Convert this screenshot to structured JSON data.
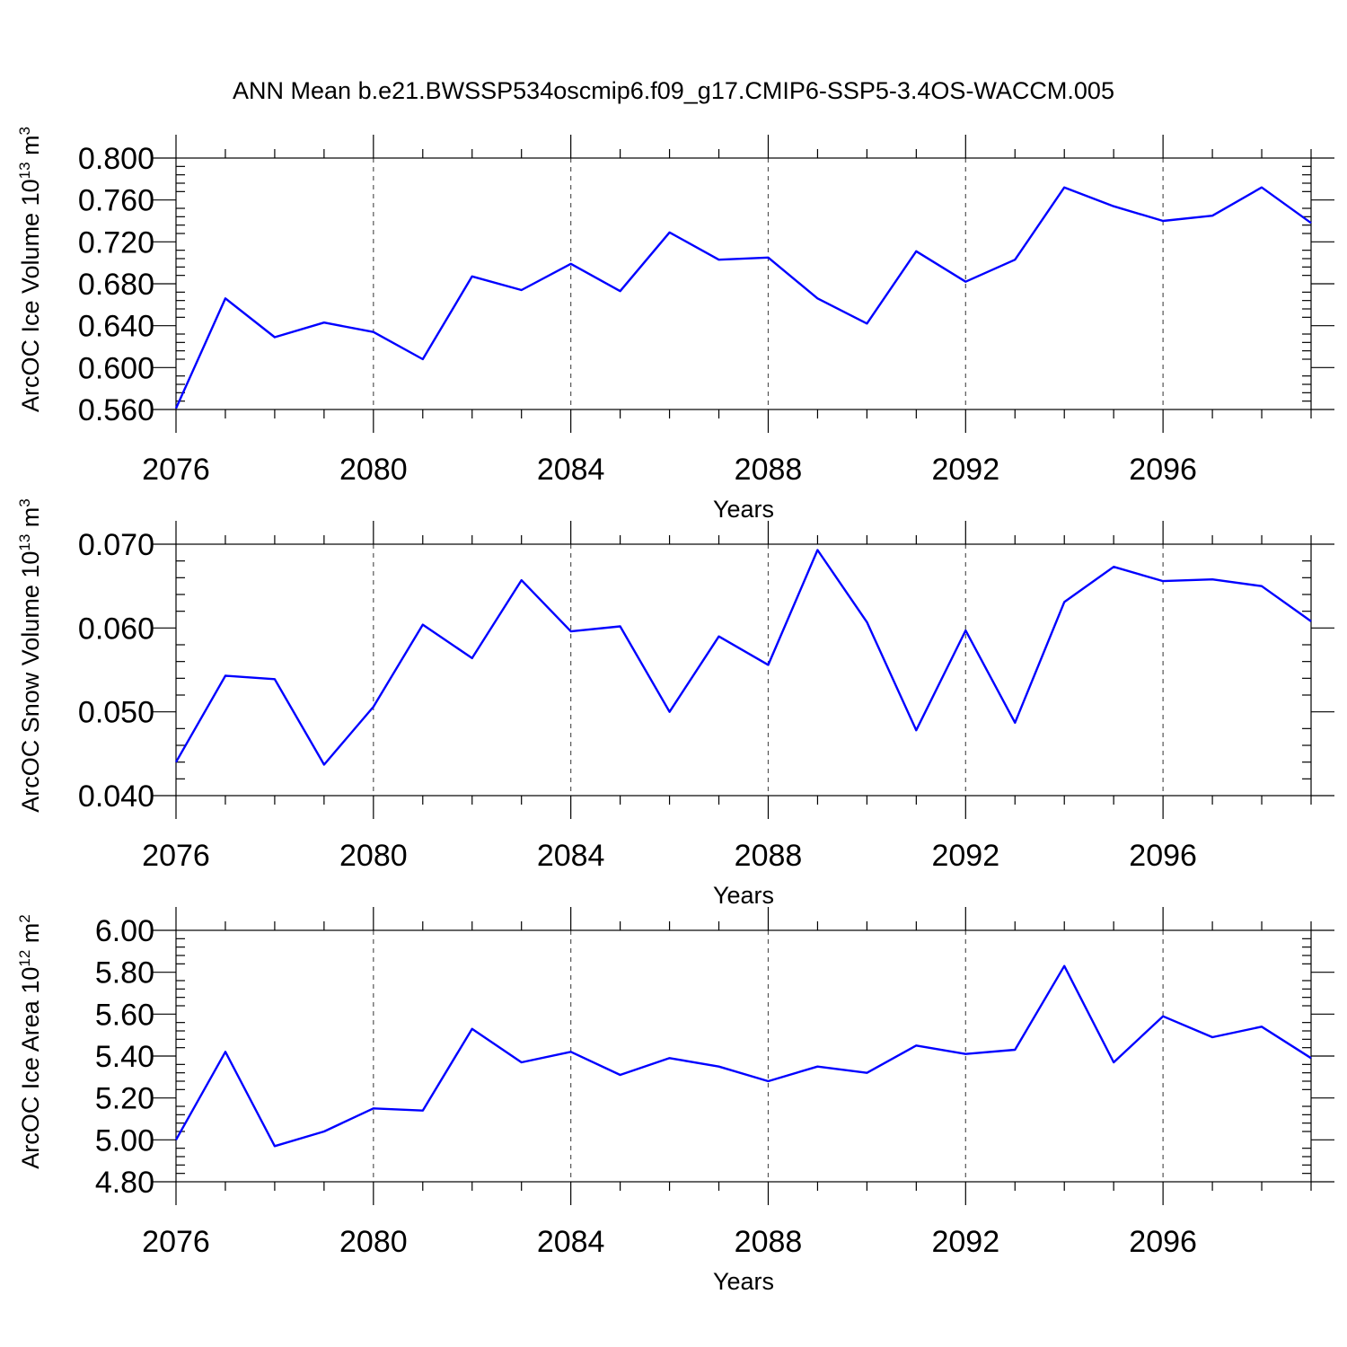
{
  "figure": {
    "title": "ANN Mean b.e21.BWSSP534oscmip6.f09_g17.CMIP6-SSP5-3.4OS-WACCM.005"
  },
  "colors": {
    "series": "#0000ff",
    "axes": "#000000",
    "grid": "#555555"
  },
  "chart_data": [
    {
      "type": "line",
      "xlabel": "Years",
      "ylabel_main": "ArcOC Ice Volume 10",
      "ylabel_exp": "13",
      "ylabel_unit": "m",
      "ylabel_unit_exp": "3",
      "xlim": [
        2076,
        2099
      ],
      "ylim": [
        0.56,
        0.8
      ],
      "grid": "vertical dashed at major x ticks",
      "x_major_ticks": [
        2076,
        2080,
        2084,
        2088,
        2092,
        2096
      ],
      "x_tick_labels": [
        "2076",
        "2080",
        "2084",
        "2088",
        "2092",
        "2096"
      ],
      "y_major_ticks": [
        0.56,
        0.6,
        0.64,
        0.68,
        0.72,
        0.76,
        0.8
      ],
      "y_tick_labels": [
        "0.560",
        "0.600",
        "0.640",
        "0.680",
        "0.720",
        "0.760",
        "0.800"
      ],
      "y_minor_step": 0.008,
      "x": [
        2076,
        2077,
        2078,
        2079,
        2080,
        2081,
        2082,
        2083,
        2084,
        2085,
        2086,
        2087,
        2088,
        2089,
        2090,
        2091,
        2092,
        2093,
        2094,
        2095,
        2096,
        2097,
        2098,
        2099
      ],
      "values": [
        0.561,
        0.666,
        0.629,
        0.643,
        0.634,
        0.608,
        0.687,
        0.674,
        0.699,
        0.673,
        0.729,
        0.703,
        0.705,
        0.666,
        0.642,
        0.711,
        0.682,
        0.703,
        0.772,
        0.754,
        0.74,
        0.745,
        0.772,
        0.738
      ]
    },
    {
      "type": "line",
      "xlabel": "Years",
      "ylabel_main": "ArcOC Snow Volume 10",
      "ylabel_exp": "13",
      "ylabel_unit": "m",
      "ylabel_unit_exp": "3",
      "xlim": [
        2076,
        2099
      ],
      "ylim": [
        0.04,
        0.07
      ],
      "grid": "vertical dashed at major x ticks",
      "x_major_ticks": [
        2076,
        2080,
        2084,
        2088,
        2092,
        2096
      ],
      "x_tick_labels": [
        "2076",
        "2080",
        "2084",
        "2088",
        "2092",
        "2096"
      ],
      "y_major_ticks": [
        0.04,
        0.05,
        0.06,
        0.07
      ],
      "y_tick_labels": [
        "0.040",
        "0.050",
        "0.060",
        "0.070"
      ],
      "y_minor_step": 0.002,
      "x": [
        2076,
        2077,
        2078,
        2079,
        2080,
        2081,
        2082,
        2083,
        2084,
        2085,
        2086,
        2087,
        2088,
        2089,
        2090,
        2091,
        2092,
        2093,
        2094,
        2095,
        2096,
        2097,
        2098,
        2099
      ],
      "values": [
        0.044,
        0.0543,
        0.0539,
        0.0437,
        0.0506,
        0.0604,
        0.0564,
        0.0657,
        0.0596,
        0.0602,
        0.05,
        0.059,
        0.0556,
        0.0693,
        0.0607,
        0.0478,
        0.0597,
        0.0487,
        0.0631,
        0.0673,
        0.0656,
        0.0658,
        0.065,
        0.0608
      ]
    },
    {
      "type": "line",
      "xlabel": "Years",
      "ylabel_main": "ArcOC Ice Area 10",
      "ylabel_exp": "12",
      "ylabel_unit": "m",
      "ylabel_unit_exp": "2",
      "xlim": [
        2076,
        2099
      ],
      "ylim": [
        4.8,
        6.0
      ],
      "grid": "vertical dashed at major x ticks",
      "x_major_ticks": [
        2076,
        2080,
        2084,
        2088,
        2092,
        2096
      ],
      "x_tick_labels": [
        "2076",
        "2080",
        "2084",
        "2088",
        "2092",
        "2096"
      ],
      "y_major_ticks": [
        4.8,
        5.0,
        5.2,
        5.4,
        5.6,
        5.8,
        6.0
      ],
      "y_tick_labels": [
        "4.80",
        "5.00",
        "5.20",
        "5.40",
        "5.60",
        "5.80",
        "6.00"
      ],
      "y_minor_step": 0.04,
      "x": [
        2076,
        2077,
        2078,
        2079,
        2080,
        2081,
        2082,
        2083,
        2084,
        2085,
        2086,
        2087,
        2088,
        2089,
        2090,
        2091,
        2092,
        2093,
        2094,
        2095,
        2096,
        2097,
        2098,
        2099
      ],
      "values": [
        5.0,
        5.42,
        4.97,
        5.04,
        5.15,
        5.14,
        5.53,
        5.37,
        5.42,
        5.31,
        5.39,
        5.35,
        5.28,
        5.35,
        5.32,
        5.45,
        5.41,
        5.43,
        5.83,
        5.37,
        5.59,
        5.49,
        5.54,
        5.39
      ]
    }
  ]
}
